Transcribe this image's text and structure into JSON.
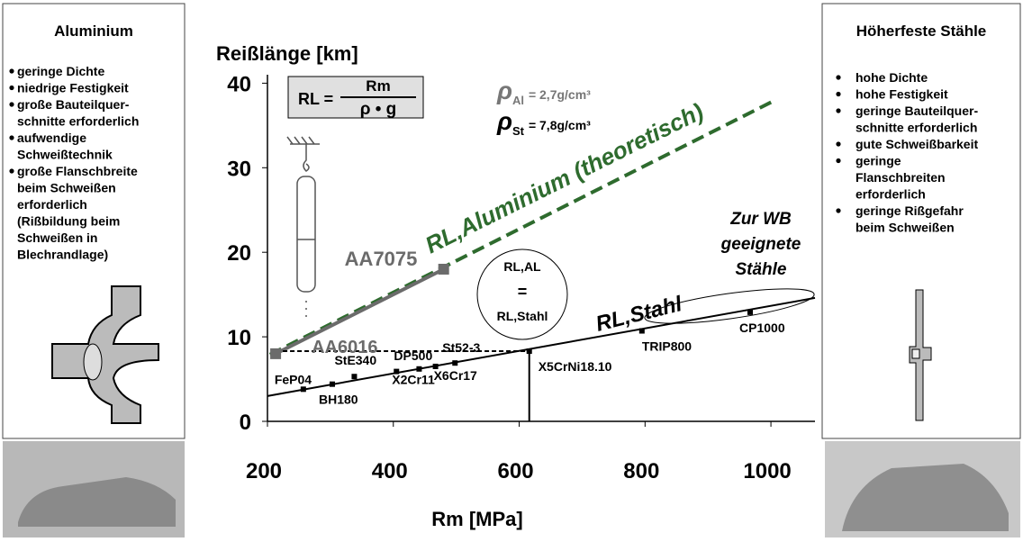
{
  "chart_data": {
    "type": "line",
    "y_label": "Reißlänge [km]",
    "x_label": "Rm [MPa]",
    "xlim": [
      200,
      1070
    ],
    "ylim": [
      0,
      41
    ],
    "xticks": [
      200,
      400,
      600,
      800,
      1000
    ],
    "yticks": [
      0,
      10,
      20,
      30,
      40
    ],
    "series": [
      {
        "name": "RL,Aluminium (theoretisch)",
        "color": "#2e6b2e",
        "dashed": true,
        "x": [
          204,
          1007
        ],
        "values": [
          7.9,
          38
        ]
      },
      {
        "color": "#6b6b6b",
        "x": [
          213,
          480
        ],
        "values": [
          8,
          18
        ],
        "point_labels": [
          "AA6016",
          "AA7075"
        ]
      },
      {
        "name": "RL,Stahl",
        "color": "#000000",
        "x": [
          200,
          1070
        ],
        "values": [
          3.0,
          14.6
        ]
      },
      {
        "color": "#000000",
        "dashed": true,
        "x": [
          213,
          616
        ],
        "values": [
          8.3,
          8.3
        ]
      },
      {
        "color": "#000000",
        "x": [
          616,
          616
        ],
        "values": [
          0,
          8.3
        ]
      },
      {
        "color": "#000000",
        "markers": true,
        "x": [
          257,
          303,
          338,
          405,
          441,
          467,
          498,
          616,
          795,
          967
        ],
        "values": [
          3.8,
          4.4,
          5.3,
          5.9,
          6.2,
          6.5,
          6.9,
          8.3,
          10.7,
          12.9
        ],
        "point_labels": [
          "FeP04",
          "BH180",
          "StE340",
          "X2Cr11",
          "DP500",
          "X6Cr17",
          "St52-3",
          "X5CrNi18.10",
          "TRIP800",
          "CP1000"
        ]
      }
    ],
    "formula": {
      "lhs": "RL =",
      "numerator": "Rm",
      "denominator": "ρ • g"
    },
    "densities": [
      {
        "symbol": "ρ",
        "sub": "Al",
        "text": "= 2,7g/cm³"
      },
      {
        "symbol": "ρ",
        "sub": "St",
        "text": "= 7,8g/cm³"
      }
    ],
    "equality_note": [
      "RL,AL",
      "=",
      "RL,Stahl"
    ],
    "suitable_note": [
      "Zur WB",
      "geeignete",
      "Stähle"
    ]
  },
  "left_panel": {
    "title": "Aluminium",
    "bullets": [
      [
        "geringe Dichte"
      ],
      [
        "niedrige Festigkeit"
      ],
      [
        "große Bauteilquer-",
        "schnitte erforderlich"
      ],
      [
        "aufwendige",
        "Schweißtechnik"
      ],
      [
        "große Flanschbreite",
        "beim Schweißen",
        "erforderlich",
        "(Rißbildung beim",
        "Schweißen in",
        "Blechrandlage)"
      ]
    ]
  },
  "right_panel": {
    "title": "Höherfeste Stähle",
    "bullets": [
      [
        "hohe Dichte"
      ],
      [
        "hohe Festigkeit"
      ],
      [
        "geringe Bauteilquer-",
        "schnitte erforderlich"
      ],
      [
        "gute Schweißbarkeit"
      ],
      [
        "geringe",
        "Flanschbreiten",
        "erforderlich"
      ],
      [
        "geringe Rißgefahr",
        "beim Schweißen"
      ]
    ]
  }
}
